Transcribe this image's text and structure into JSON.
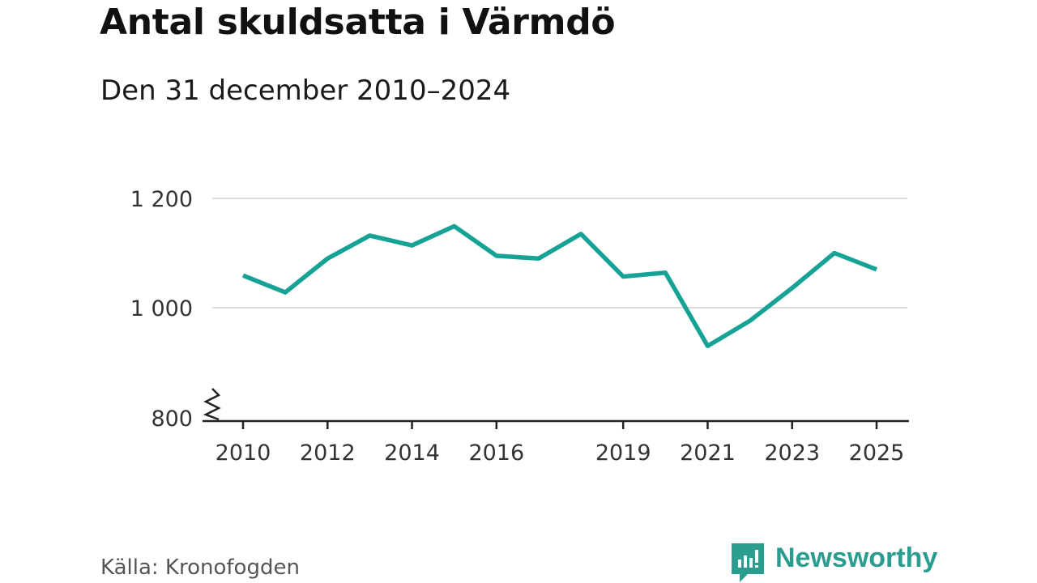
{
  "title": "Antal skuldsatta i Värmdö",
  "subtitle": "Den 31 december 2010–2024",
  "source": "Källa: Kronofogden",
  "brand": {
    "name": "Newsworthy",
    "icon": "newsworthy-logo-icon",
    "color": "#2a9d8f"
  },
  "chart_data": {
    "type": "line",
    "title": "Antal skuldsatta i Värmdö",
    "subtitle": "Den 31 december 2010–2024",
    "xlabel": "",
    "ylabel": "",
    "x": [
      2010,
      2011,
      2012,
      2013,
      2014,
      2015,
      2016,
      2017,
      2018,
      2019,
      2020,
      2021,
      2022,
      2023,
      2024,
      2025
    ],
    "series": [
      {
        "values": [
          1059,
          1028,
          1090,
          1132,
          1114,
          1149,
          1095,
          1090,
          1135,
          1057,
          1064,
          930,
          976,
          1036,
          1100,
          1070
        ],
        "color": "#16a396"
      }
    ],
    "ylim": [
      800,
      1200
    ],
    "y_ticks": [
      800,
      1000,
      1200
    ],
    "y_tick_labels": [
      "800",
      "1 000",
      "1 200"
    ],
    "x_ticks": [
      2010,
      2012,
      2014,
      2016,
      2019,
      2021,
      2023,
      2025
    ],
    "x_tick_labels": [
      "2010",
      "2012",
      "2014",
      "2016",
      "2019",
      "2021",
      "2023",
      "2025"
    ],
    "axis_break": true,
    "grid": true
  }
}
